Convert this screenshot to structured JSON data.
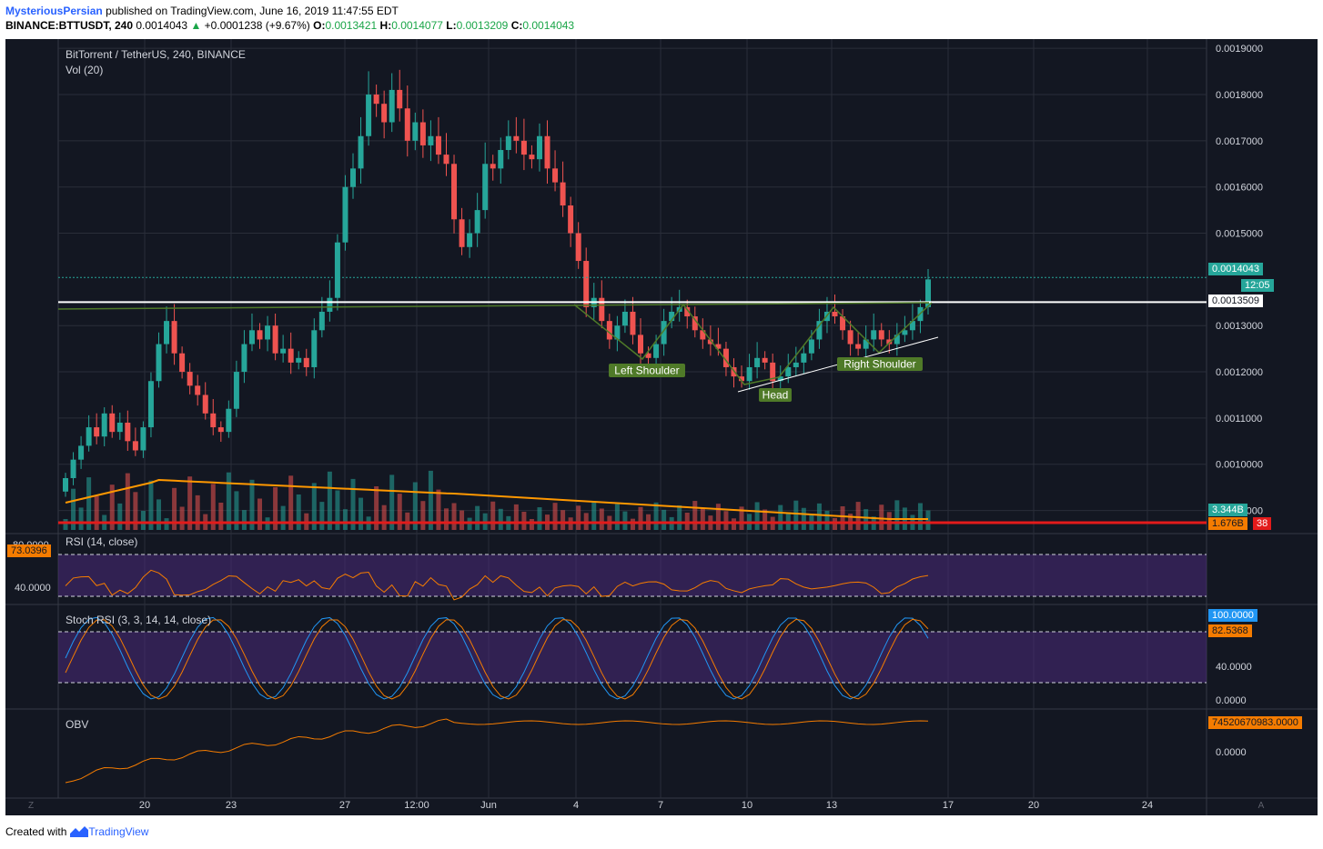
{
  "header": {
    "author": "MysteriousPersian",
    "published": "published on TradingView.com, June 16, 2019 11:47:55 EDT",
    "symbol": "BINANCE:BTTUSDT, 240",
    "last": "0.0014043",
    "change": "+0.0001238 (+9.67%)",
    "o_label": "O:",
    "o_val": "0.0013421",
    "h_label": "H:",
    "h_val": "0.0014077",
    "l_label": "L:",
    "l_val": "0.0013209",
    "c_label": "C:",
    "c_val": "0.0014043"
  },
  "main_legend": {
    "title": "BitTorrent / TetherUS, 240, BINANCE",
    "vol": "Vol (20)"
  },
  "price_axis": [
    "0.0019000",
    "0.0018000",
    "0.0017000",
    "0.0016000",
    "0.0015000",
    "0.0013000",
    "0.0012000",
    "0.0011000",
    "0.0010000",
    "0.0009000"
  ],
  "price_labels": {
    "last": "0.0014043",
    "countdown": "12:05",
    "line": "0.0013509",
    "vol1": "3.344B",
    "vol2": "1.676B",
    "vol2_suffix": "38"
  },
  "annotations": {
    "left": "Left Shoulder",
    "head": "Head",
    "right": "Right Shoulder"
  },
  "rsi": {
    "title": "RSI (14, close)",
    "value": "73.0396",
    "axis_top": "80.0000",
    "axis_mid": "40.0000"
  },
  "stoch": {
    "title": "Stoch RSI (3, 3, 14, 14, close)",
    "k": "100.0000",
    "d": "82.5368",
    "axis_40": "40.0000",
    "axis_0": "0.0000"
  },
  "obv": {
    "title": "OBV",
    "value": "74520670983.0000",
    "axis_0": "0.0000"
  },
  "time_axis": [
    "20",
    "23",
    "27",
    "12:00",
    "Jun",
    "4",
    "7",
    "10",
    "13",
    "17",
    "20",
    "24"
  ],
  "corner": {
    "left": "Z",
    "right": "A"
  },
  "footer": {
    "created": "Created with",
    "brand": "TradingView"
  },
  "colors": {
    "up": "#26a69a",
    "down": "#ef5350",
    "bg": "#131722"
  },
  "chart_data": {
    "type": "candlestick",
    "title": "BitTorrent / TetherUS, 240, BINANCE",
    "ylim": [
      0.00085,
      0.00192
    ],
    "neckline_price": 0.0013509,
    "last_price": 0.0014043,
    "close_series": [
      0.00097,
      0.00101,
      0.00104,
      0.00108,
      0.00106,
      0.00111,
      0.00107,
      0.00109,
      0.00105,
      0.00103,
      0.00108,
      0.00118,
      0.00126,
      0.00131,
      0.00124,
      0.0012,
      0.00117,
      0.00115,
      0.00111,
      0.00108,
      0.00107,
      0.00112,
      0.0012,
      0.00126,
      0.00129,
      0.00127,
      0.0013,
      0.00124,
      0.00125,
      0.00122,
      0.00123,
      0.00121,
      0.00129,
      0.00133,
      0.00136,
      0.00148,
      0.0016,
      0.00164,
      0.00171,
      0.0018,
      0.00178,
      0.00174,
      0.00181,
      0.00177,
      0.0017,
      0.00174,
      0.00169,
      0.00171,
      0.00167,
      0.00165,
      0.00153,
      0.00147,
      0.0015,
      0.00155,
      0.00165,
      0.00164,
      0.00168,
      0.00171,
      0.0017,
      0.00167,
      0.00166,
      0.00171,
      0.00164,
      0.00161,
      0.00156,
      0.0015,
      0.00144,
      0.00134,
      0.00136,
      0.00131,
      0.00127,
      0.0013,
      0.00133,
      0.00128,
      0.00124,
      0.00123,
      0.00126,
      0.00131,
      0.00133,
      0.00134,
      0.00132,
      0.00129,
      0.00127,
      0.00126,
      0.00125,
      0.00121,
      0.00119,
      0.00118,
      0.00121,
      0.00123,
      0.00122,
      0.00118,
      0.00119,
      0.00121,
      0.00122,
      0.00124,
      0.00127,
      0.00131,
      0.00133,
      0.00132,
      0.00129,
      0.00126,
      0.00125,
      0.00127,
      0.00129,
      0.00127,
      0.00126,
      0.00128,
      0.00129,
      0.00131,
      0.00134,
      0.0014
    ]
  }
}
